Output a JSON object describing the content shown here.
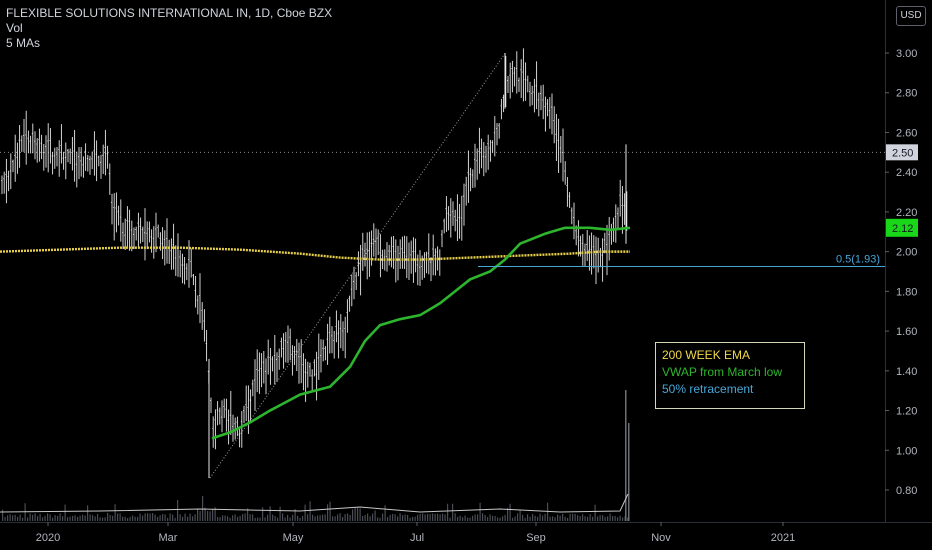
{
  "header": {
    "title": "FLEXIBLE SOLUTIONS INTERNATIONAL IN, 1D, Cboe BZX",
    "vol_label": "Vol",
    "mas_label": "5 MAs"
  },
  "currency": "USD",
  "legend": {
    "items": [
      {
        "label": "200 WEEK EMA",
        "color": "#f0d94a"
      },
      {
        "label": "VWAP from March low",
        "color": "#2db52d"
      },
      {
        "label": "50% retracement",
        "color": "#47a6d8"
      }
    ]
  },
  "chart_data": {
    "type": "line",
    "y_axis": {
      "ticks": [
        0.8,
        1.0,
        1.2,
        1.4,
        1.6,
        1.8,
        2.0,
        2.2,
        2.4,
        2.6,
        2.8,
        3.0
      ],
      "range": [
        0.7,
        3.18
      ]
    },
    "x_axis": {
      "ticks": [
        "2020",
        "Mar",
        "May",
        "Jul",
        "Sep",
        "Nov",
        "2021"
      ]
    },
    "price_labels": {
      "last": "2.50",
      "vwap": "2.12"
    },
    "retracement": {
      "label": "0.5(1.93)",
      "value": 1.93
    },
    "series": [
      {
        "name": "200 WEEK EMA",
        "color": "#f0d94a",
        "values": [
          2.0,
          2.01,
          2.02,
          2.02,
          2.02,
          2.01,
          1.99,
          1.97,
          1.96,
          1.96,
          1.96,
          1.97,
          1.98,
          1.99,
          2.0
        ]
      },
      {
        "name": "VWAP from March low",
        "color": "#2db52d",
        "values": [
          1.06,
          1.1,
          1.18,
          1.25,
          1.33,
          1.49,
          1.65,
          1.7,
          1.78,
          1.9,
          2.0,
          2.1,
          2.12,
          2.11,
          2.12
        ]
      },
      {
        "name": "Price (approx. daily)",
        "color": "#e8e8e8",
        "values": [
          2.36,
          2.5,
          2.55,
          2.48,
          2.44,
          2.2,
          2.14,
          2.04,
          1.98,
          1.68,
          1.08,
          1.18,
          1.55,
          1.4,
          1.52,
          1.62,
          1.9,
          1.98,
          2.02,
          1.94,
          2.26,
          2.5,
          2.8,
          2.9,
          2.62,
          2.4,
          2.0,
          2.08,
          2.14,
          2.5
        ]
      }
    ]
  }
}
